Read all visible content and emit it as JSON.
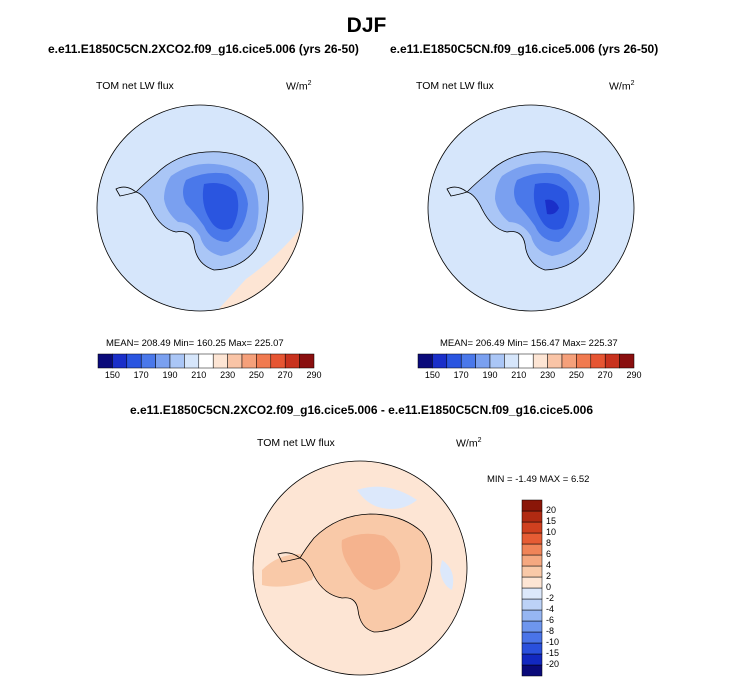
{
  "title": "DJF",
  "panels": [
    {
      "case": "e.e11.E1850C5CN.2XCO2.f09_g16.cice5.006 (yrs 26-50)",
      "variable": "TOM net LW flux",
      "units": "W/m",
      "units_exp": "2",
      "stats": "MEAN= 208.49  Min= 160.25  Max= 225.07"
    },
    {
      "case": "e.e11.E1850C5CN.f09_g16.cice5.006 (yrs 26-50)",
      "variable": "TOM net LW flux",
      "units": "W/m",
      "units_exp": "2",
      "stats": "MEAN= 206.49  Min= 156.47  Max= 225.37"
    }
  ],
  "diff_panel": {
    "case": "e.e11.E1850C5CN.2XCO2.f09_g16.cice5.006 - e.e11.E1850C5CN.f09_g16.cice5.006",
    "variable": "TOM net LW flux",
    "units": "W/m",
    "units_exp": "2",
    "stats": "MIN =  -1.49 MAX =   6.52"
  },
  "abs_colorbar": {
    "colors": [
      "#0a0a7a",
      "#1a2fc9",
      "#2a55e0",
      "#4a78ea",
      "#7aa0f0",
      "#aac6f6",
      "#d6e6fb",
      "#ffffff",
      "#fde5d4",
      "#f9c4a6",
      "#f5a07a",
      "#f07a50",
      "#e65532",
      "#c8321e",
      "#8a0f0f"
    ],
    "ticks": [
      "150",
      "170",
      "190",
      "210",
      "230",
      "250",
      "270",
      "290"
    ]
  },
  "diff_colorbar": {
    "colors": [
      "#0a0a7a",
      "#1228c0",
      "#2a50dc",
      "#4a74e8",
      "#6e96ee",
      "#96b6f2",
      "#bcd2f7",
      "#dce8fb",
      "#fde5d4",
      "#f9c9a8",
      "#f5a880",
      "#f08458",
      "#e65c34",
      "#d0401f",
      "#b02a12",
      "#8a1608"
    ],
    "ticks": [
      "20",
      "15",
      "10",
      "8",
      "6",
      "4",
      "2",
      "0",
      "-2",
      "-4",
      "-6",
      "-8",
      "-10",
      "-15",
      "-20"
    ]
  }
}
